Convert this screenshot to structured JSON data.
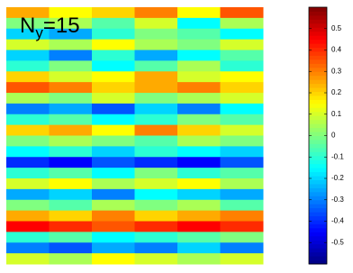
{
  "chart_data": {
    "type": "heatmap",
    "colormap": "jet",
    "annotation": {
      "base": "N",
      "sub": "y",
      "rest": "=15"
    },
    "clim": [
      -0.6,
      0.6
    ],
    "cticks": [
      0.5,
      0.4,
      0.3,
      0.2,
      0.1,
      0,
      -0.1,
      -0.2,
      -0.3,
      -0.4,
      -0.5
    ],
    "z": [
      [
        0.25,
        0.15,
        0.2,
        0.3,
        0.15,
        0.35
      ],
      [
        0.0,
        0.05,
        -0.05,
        0.1,
        -0.15,
        0.05
      ],
      [
        -0.2,
        -0.25,
        -0.1,
        0.0,
        -0.05,
        -0.15
      ],
      [
        0.1,
        0.05,
        0.15,
        0.05,
        0.0,
        0.1
      ],
      [
        -0.2,
        -0.3,
        -0.1,
        -0.25,
        -0.15,
        -0.05
      ],
      [
        -0.1,
        0.0,
        -0.15,
        -0.05,
        0.05,
        -0.1
      ],
      [
        0.2,
        0.1,
        0.15,
        0.25,
        0.1,
        0.15
      ],
      [
        0.35,
        0.3,
        0.2,
        0.25,
        0.3,
        0.2
      ],
      [
        0.05,
        0.0,
        0.1,
        0.0,
        0.05,
        0.1
      ],
      [
        -0.3,
        -0.25,
        -0.35,
        -0.2,
        -0.3,
        -0.15
      ],
      [
        -0.1,
        -0.05,
        -0.15,
        -0.1,
        0.0,
        -0.05
      ],
      [
        0.2,
        0.25,
        0.15,
        0.3,
        0.2,
        0.1
      ],
      [
        0.0,
        0.05,
        0.0,
        -0.05,
        0.05,
        0.0
      ],
      [
        -0.15,
        -0.1,
        -0.2,
        -0.1,
        -0.15,
        -0.2
      ],
      [
        -0.4,
        -0.45,
        -0.35,
        -0.4,
        -0.45,
        -0.35
      ],
      [
        -0.1,
        -0.05,
        -0.15,
        0.0,
        -0.1,
        -0.05
      ],
      [
        0.1,
        0.15,
        0.05,
        0.1,
        0.15,
        0.05
      ],
      [
        -0.25,
        -0.2,
        -0.3,
        -0.15,
        -0.2,
        -0.25
      ],
      [
        0.0,
        -0.05,
        0.05,
        0.0,
        0.05,
        -0.05
      ],
      [
        0.25,
        0.2,
        0.3,
        0.2,
        0.25,
        0.3
      ],
      [
        0.45,
        0.4,
        0.35,
        0.4,
        0.45,
        0.4
      ],
      [
        -0.1,
        -0.05,
        -0.15,
        -0.1,
        -0.05,
        0.0
      ],
      [
        -0.3,
        -0.35,
        -0.25,
        -0.3,
        -0.2,
        -0.3
      ],
      [
        0.1,
        0.05,
        0.15,
        0.1,
        0.05,
        0.1
      ]
    ]
  }
}
